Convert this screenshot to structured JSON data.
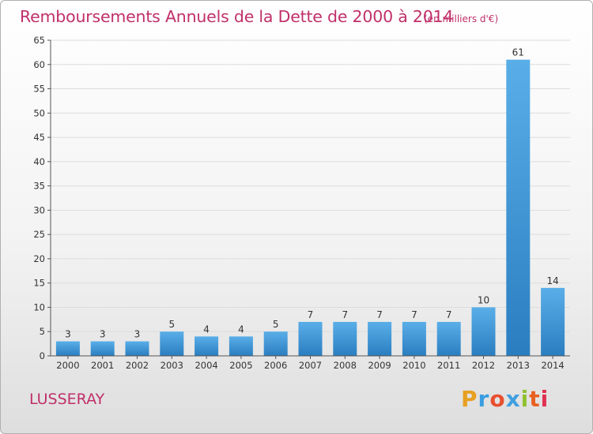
{
  "header": {
    "title": "Remboursements Annuels de la Dette de 2000 à 2014",
    "subtitle": "(en milliers d'€)"
  },
  "footer": {
    "town": "LUSSERAY",
    "logo_letters": [
      "P",
      "r",
      "o",
      "x",
      "i",
      "t",
      "i"
    ]
  },
  "colors": {
    "title": "#c0306a",
    "bar_top": "#5aaee8",
    "bar_bottom": "#2a7ec0",
    "grid": "#dcdcdc",
    "axis": "#555555"
  },
  "chart_data": {
    "type": "bar",
    "categories": [
      "2000",
      "2001",
      "2002",
      "2003",
      "2004",
      "2005",
      "2006",
      "2007",
      "2008",
      "2009",
      "2010",
      "2011",
      "2012",
      "2013",
      "2014"
    ],
    "values": [
      3,
      3,
      3,
      5,
      4,
      4,
      5,
      7,
      7,
      7,
      7,
      7,
      10,
      61,
      14
    ],
    "value_labels": [
      "3",
      "3",
      "3",
      "5",
      "4",
      "4",
      "5",
      "7",
      "7",
      "7",
      "7",
      "7",
      "10",
      "61",
      "14"
    ],
    "title": "Remboursements Annuels de la Dette de 2000 à 2014",
    "xlabel": "",
    "ylabel": "",
    "ylim": [
      0,
      65
    ],
    "yticks": [
      "0",
      "5",
      "10",
      "15",
      "20",
      "25",
      "30",
      "35",
      "40",
      "45",
      "50",
      "55",
      "60",
      "65"
    ],
    "grid": true,
    "legend": "none"
  }
}
